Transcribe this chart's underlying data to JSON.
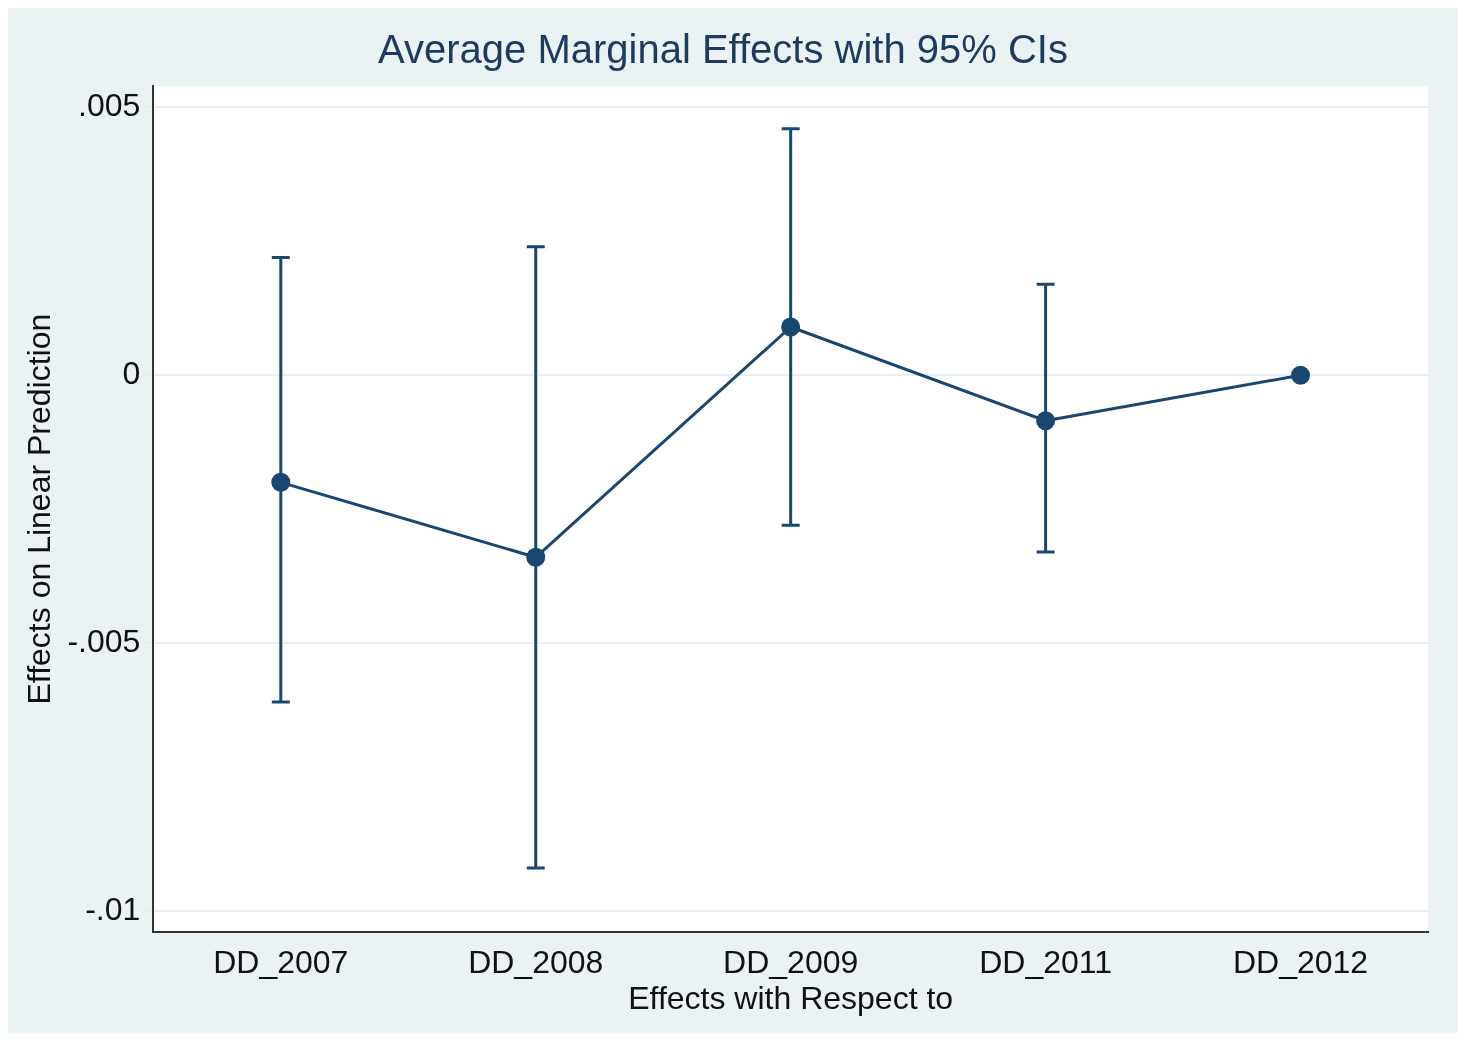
{
  "chart_data": {
    "type": "line",
    "title": "Average Marginal Effects with 95% CIs",
    "xlabel": "Effects with Respect to",
    "ylabel": "Effects on Linear Prediction",
    "categories": [
      "DD_2007",
      "DD_2008",
      "DD_2009",
      "DD_2011",
      "DD_2012"
    ],
    "series": [
      {
        "color": "#1a476f",
        "values": [
          -0.002,
          -0.0034,
          0.0009,
          -0.00085,
          0
        ],
        "errors": [
          [
            -0.0061,
            0.0022
          ],
          [
            -0.0092,
            0.0024
          ],
          [
            -0.0028,
            0.0046
          ],
          [
            -0.0033,
            0.0017
          ],
          null
        ]
      }
    ],
    "ylim": [
      -0.0104,
      0.0054
    ],
    "yticks": [
      {
        "value": -0.01,
        "label": "-.01"
      },
      {
        "value": -0.005,
        "label": "-.005"
      },
      {
        "value": 0,
        "label": "0"
      },
      {
        "value": 0.005,
        "label": ".005"
      }
    ],
    "grid": "y",
    "legend": false,
    "marker": "circle",
    "line_style": "solid"
  }
}
